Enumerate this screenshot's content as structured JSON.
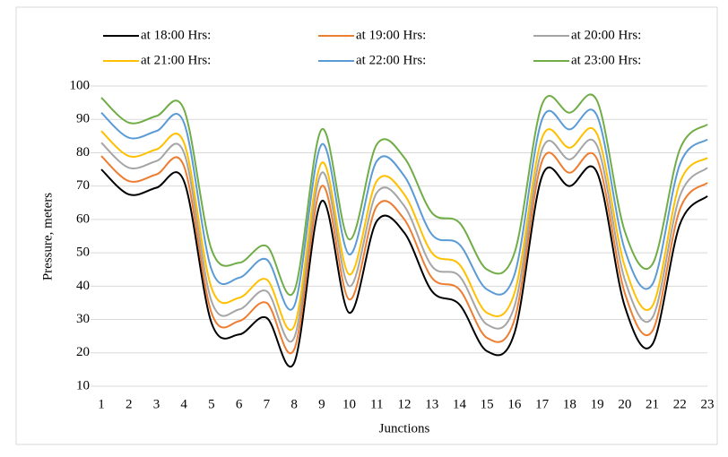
{
  "chart_data": {
    "type": "line",
    "x_label": "Junctions",
    "y_label": "Pressure, meters",
    "categories": [
      "1",
      "2",
      "3",
      "4",
      "5",
      "6",
      "7",
      "8",
      "9",
      "10",
      "11",
      "12",
      "13",
      "14",
      "15",
      "16",
      "17",
      "18",
      "19",
      "20",
      "21",
      "22",
      "23"
    ],
    "ylim": [
      10,
      100
    ],
    "yticks": [
      10,
      20,
      30,
      40,
      50,
      60,
      70,
      80,
      90,
      100
    ],
    "grid": true,
    "legend": "top",
    "series": [
      {
        "name": "at 18:00 Hrs:",
        "color": "#000000",
        "values": [
          75,
          67.5,
          69.5,
          71.5,
          29,
          25.5,
          30.5,
          17,
          65.5,
          32,
          59.5,
          56,
          38.5,
          34.5,
          20.5,
          26,
          73,
          70,
          74,
          34,
          22.5,
          58.5,
          67
        ]
      },
      {
        "name": "at 19:00 Hrs:",
        "color": "#ed7d31",
        "values": [
          79,
          71.5,
          73.5,
          76,
          32,
          29.5,
          35,
          21,
          70,
          36,
          64,
          60,
          42.5,
          39,
          24.5,
          30,
          77.5,
          74,
          78,
          38,
          26.5,
          63,
          71
        ]
      },
      {
        "name": "at 20:00 Hrs:",
        "color": "#a5a5a5",
        "values": [
          83,
          75.5,
          77.5,
          80,
          35.5,
          33,
          38.5,
          24.5,
          74,
          40,
          68,
          64,
          46,
          43,
          28.5,
          34,
          81,
          78,
          82,
          42,
          30.5,
          67,
          75.5
        ]
      },
      {
        "name": "at 21:00 Hrs:",
        "color": "#ffc000",
        "values": [
          86.5,
          79,
          81,
          83,
          39.5,
          36.5,
          42,
          28,
          77,
          43.5,
          71.5,
          67.5,
          50,
          46.5,
          32,
          38,
          84.5,
          81.5,
          85.5,
          46,
          34,
          71,
          78.5
        ]
      },
      {
        "name": "at 22:00 Hrs:",
        "color": "#5b9bd5",
        "values": [
          92,
          84.5,
          86.5,
          89,
          45,
          42.5,
          48,
          34,
          82.5,
          49.5,
          77.5,
          73,
          55.5,
          52.5,
          39,
          43.5,
          90,
          87,
          91,
          51,
          40.5,
          76.5,
          84
        ]
      },
      {
        "name": "at 23:00 Hrs:",
        "color": "#70ad47",
        "values": [
          96.5,
          89,
          91,
          93,
          51,
          47,
          52,
          38.5,
          87,
          54,
          82.5,
          78.5,
          62,
          59,
          45,
          50,
          94.5,
          92,
          95.5,
          56.5,
          46.5,
          81,
          88.5
        ]
      }
    ]
  }
}
